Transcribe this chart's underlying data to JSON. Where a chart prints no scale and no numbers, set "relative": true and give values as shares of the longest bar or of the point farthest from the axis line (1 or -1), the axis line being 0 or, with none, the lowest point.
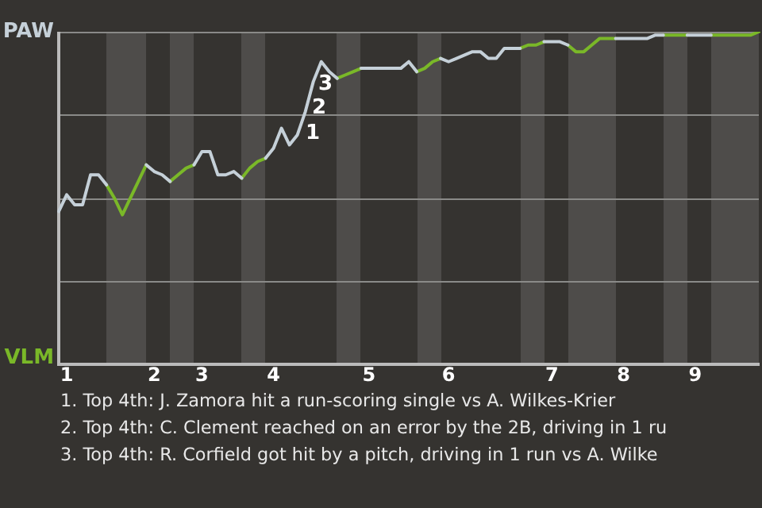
{
  "chart_data": {
    "type": "line",
    "relative": true,
    "categories": [
      null,
      "1",
      null,
      null,
      null,
      null,
      null,
      null,
      null,
      null,
      null,
      null,
      "2",
      null,
      null,
      null,
      null,
      null,
      "3",
      null,
      null,
      null,
      null,
      null,
      null,
      null,
      null,
      "4",
      null,
      null,
      null,
      null,
      null,
      null,
      null,
      null,
      null,
      null,
      null,
      "5",
      null,
      null,
      null,
      null,
      null,
      null,
      null,
      null,
      null,
      "6",
      null,
      null,
      null,
      null,
      null,
      null,
      null,
      null,
      null,
      null,
      null,
      null,
      "7",
      null,
      null,
      null,
      null,
      null,
      null,
      null,
      null,
      "8",
      null,
      null,
      null,
      null,
      null,
      null,
      null,
      null,
      "9",
      null,
      null,
      null,
      null,
      null,
      null,
      null,
      null
    ],
    "legend": false,
    "marker": "none",
    "line_style": "solid",
    "series": [
      {
        "name": "PAW",
        "color": "#c5d0d8",
        "values": [
          0.46,
          0.51,
          0.48,
          0.48,
          0.57,
          0.57,
          0.54,
          null,
          null,
          null,
          null,
          0.6,
          0.58,
          0.57,
          0.55,
          null,
          null,
          0.6,
          0.64,
          0.64,
          0.57,
          0.57,
          0.58,
          0.56,
          null,
          null,
          0.62,
          0.65,
          0.71,
          0.66,
          0.69,
          0.76,
          0.85,
          0.91,
          0.88,
          0.86,
          null,
          null,
          0.89,
          0.89,
          0.89,
          0.89,
          0.89,
          0.89,
          0.91,
          0.88,
          null,
          null,
          0.92,
          0.91,
          0.92,
          0.93,
          0.94,
          0.94,
          0.92,
          0.92,
          0.95,
          0.95,
          0.95,
          null,
          null,
          0.97,
          0.97,
          0.97,
          0.96,
          null,
          null,
          null,
          null,
          null,
          0.98,
          0.98,
          0.98,
          0.98,
          0.98,
          0.99,
          0.99,
          null,
          null,
          0.99,
          0.99,
          0.99,
          0.99,
          null,
          null,
          null,
          null,
          null,
          null
        ]
      },
      {
        "name": "VLM",
        "color": "#7ab828",
        "values": [
          null,
          null,
          null,
          null,
          null,
          null,
          0.54,
          0.5,
          0.45,
          0.5,
          0.55,
          0.6,
          null,
          null,
          0.55,
          0.57,
          0.59,
          0.6,
          null,
          null,
          null,
          null,
          null,
          0.56,
          0.59,
          0.61,
          0.62,
          null,
          null,
          null,
          null,
          null,
          null,
          null,
          null,
          0.86,
          0.87,
          0.88,
          0.89,
          null,
          null,
          null,
          null,
          null,
          null,
          0.88,
          0.89,
          0.91,
          0.92,
          null,
          null,
          null,
          null,
          null,
          null,
          null,
          null,
          null,
          0.95,
          0.96,
          0.96,
          0.97,
          null,
          null,
          0.96,
          0.94,
          0.94,
          0.96,
          0.98,
          0.98,
          0.98,
          null,
          null,
          null,
          null,
          null,
          0.99,
          0.99,
          0.99,
          0.99,
          null,
          null,
          0.99,
          0.99,
          0.99,
          0.99,
          0.99,
          0.99,
          1.0
        ]
      }
    ],
    "annotations": [
      "1",
      "2",
      "3",
      "1. Top 4th: J. Zamora hit a run-scoring single vs A. Wilkes-Krier",
      "2. Top 4th: C. Clement reached on an error by the 2B, driving in 1 ru",
      "3. Top 4th: R. Corfield got hit by a pitch, driving in 1 run vs A. Wilke"
    ]
  }
}
